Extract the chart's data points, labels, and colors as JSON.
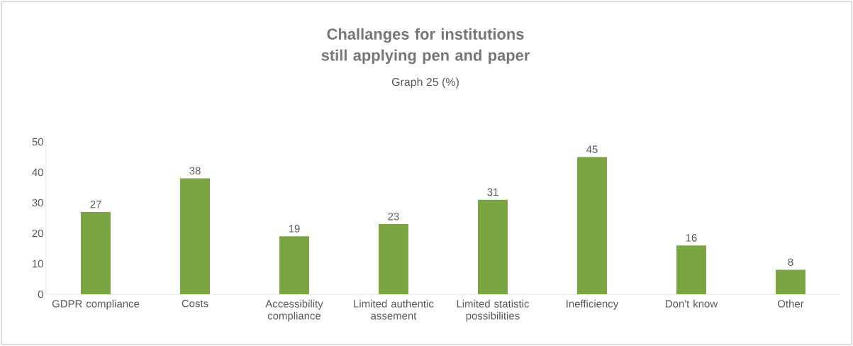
{
  "chart_data": {
    "type": "bar",
    "title": "Challanges for institutions still applying pen and paper",
    "subtitle": "Graph 25 (%)",
    "categories": [
      "GDPR compliance",
      "Costs",
      "Accessibility compliance",
      "Limited authentic assement",
      "Limited statistic possibilities",
      "Inefficiency",
      "Don't know",
      "Other"
    ],
    "values": [
      27,
      38,
      19,
      23,
      31,
      45,
      16,
      8
    ],
    "color": "#7aa540",
    "ylim": [
      0,
      50
    ],
    "yticks": [
      0,
      10,
      20,
      30,
      40,
      50
    ],
    "data_labels": true,
    "grid": false
  }
}
